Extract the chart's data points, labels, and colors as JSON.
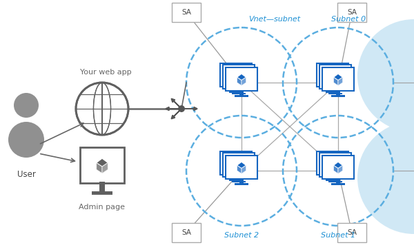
{
  "background_color": "#ffffff",
  "user_label": "User",
  "web_app_label": "Your web app",
  "admin_label": "Admin page",
  "subnet_labels": [
    "Vnet—subnet",
    "Subnet 0",
    "Subnet 2",
    "Subnet 1"
  ],
  "subnet_label_color": "#1e90d4",
  "sa_label": "SA",
  "dashed_circle_color": "#5baee0",
  "connector_color": "#999999",
  "cloud_color": "#d0e8f5",
  "icon_blue": "#1565c0",
  "icon_gray": "#707070",
  "text_gray": "#666666"
}
